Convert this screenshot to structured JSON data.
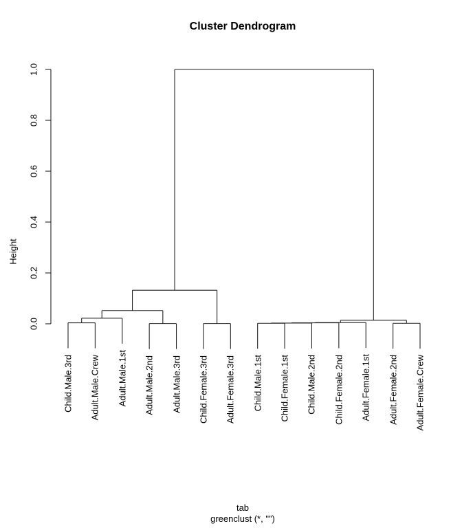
{
  "title": "Cluster Dendrogram",
  "y_axis": {
    "label": "Height",
    "ticks": [
      "0.0",
      "0.2",
      "0.4",
      "0.6",
      "0.8",
      "1.0"
    ]
  },
  "x_caption": {
    "line1": "tab",
    "line2": "greenclust (*, \"\")"
  },
  "colors": {
    "line": "#222222",
    "text": "#000000",
    "background": "#ffffff"
  },
  "chart_data": {
    "type": "dendrogram",
    "title": "Cluster Dendrogram",
    "ylabel": "Height",
    "ylim": [
      0.0,
      1.0
    ],
    "hang": 0.1,
    "leaves": [
      "Child.Male.3rd",
      "Adult.Male.Crew",
      "Adult.Male.1st",
      "Adult.Male.2nd",
      "Adult.Male.3rd",
      "Child.Female.3rd",
      "Adult.Female.3rd",
      "Child.Male.1st",
      "Child.Female.1st",
      "Child.Male.2nd",
      "Child.Female.2nd",
      "Adult.Female.1st",
      "Adult.Female.2nd",
      "Adult.Female.Crew"
    ],
    "merges": [
      {
        "id": "M1",
        "a": "L1",
        "b": "L2",
        "h": 0.004
      },
      {
        "id": "M2",
        "a": "M1",
        "b": "L3",
        "h": 0.022
      },
      {
        "id": "M3",
        "a": "L4",
        "b": "L5",
        "h": 0.001
      },
      {
        "id": "M4",
        "a": "M2",
        "b": "M3",
        "h": 0.052
      },
      {
        "id": "M5",
        "a": "L6",
        "b": "L7",
        "h": 0.001
      },
      {
        "id": "M6",
        "a": "M4",
        "b": "M5",
        "h": 0.132
      },
      {
        "id": "M7",
        "a": "L8",
        "b": "L9",
        "h": 0.002
      },
      {
        "id": "M8",
        "a": "M7",
        "b": "L10",
        "h": 0.003
      },
      {
        "id": "M9",
        "a": "M8",
        "b": "L11",
        "h": 0.004
      },
      {
        "id": "M10",
        "a": "M9",
        "b": "L12",
        "h": 0.005
      },
      {
        "id": "M11",
        "a": "L13",
        "b": "L14",
        "h": 0.002
      },
      {
        "id": "M12",
        "a": "M10",
        "b": "M11",
        "h": 0.014
      },
      {
        "id": "M13",
        "a": "M6",
        "b": "M12",
        "h": 1.0
      }
    ]
  }
}
